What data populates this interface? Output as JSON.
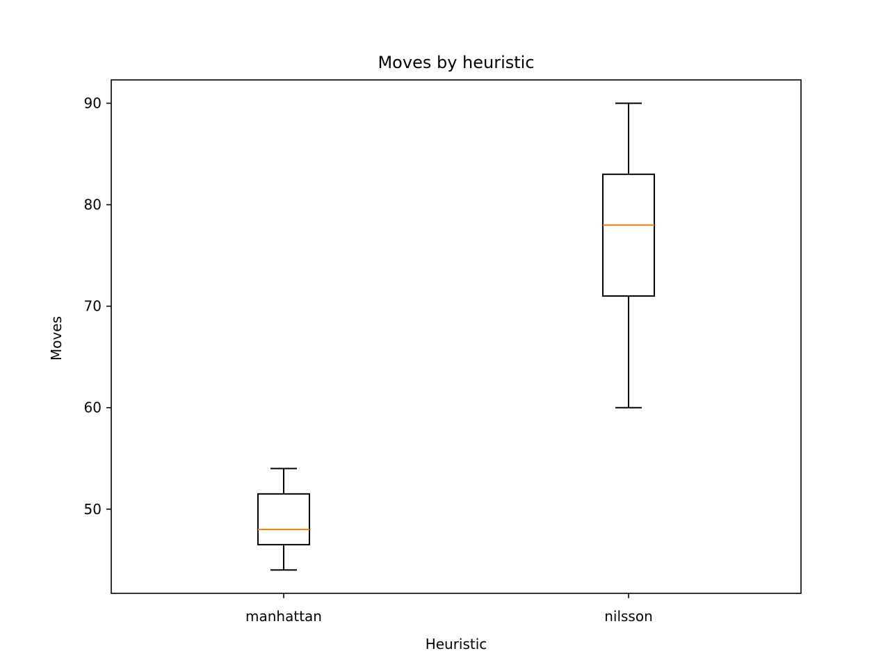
{
  "chart_data": {
    "type": "box",
    "title": "Moves by heuristic",
    "xlabel": "Heuristic",
    "ylabel": "Moves",
    "categories": [
      "manhattan",
      "nilsson"
    ],
    "boxes": [
      {
        "category": "manhattan",
        "whisker_low": 44,
        "q1": 46.5,
        "median": 48,
        "q3": 51.5,
        "whisker_high": 54
      },
      {
        "category": "nilsson",
        "whisker_low": 60,
        "q1": 71,
        "median": 78,
        "q3": 83,
        "whisker_high": 90
      }
    ],
    "ylim": [
      41.7,
      92.3
    ],
    "yticks": [
      50,
      60,
      70,
      80,
      90
    ],
    "grid": false,
    "colors": {
      "box": "#000000",
      "median": "#ff7f0e",
      "axes": "#000000"
    }
  }
}
